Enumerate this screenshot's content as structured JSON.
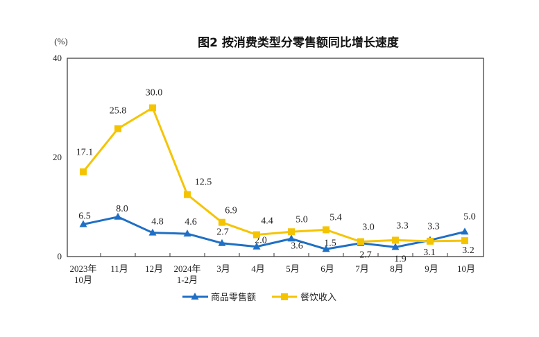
{
  "chart_data": {
    "type": "line",
    "title": "图2  按消费类型分零售额同比增长速度",
    "ylabel": "(%)",
    "ylim": [
      0,
      40
    ],
    "yticks": [
      "0",
      "20",
      "40"
    ],
    "categories": [
      [
        "2023年",
        "10月"
      ],
      [
        "11月"
      ],
      [
        "12月"
      ],
      [
        "2024年",
        "1-2月"
      ],
      [
        "3月"
      ],
      [
        "4月"
      ],
      [
        "5月"
      ],
      [
        "6月"
      ],
      [
        "7月"
      ],
      [
        "8月"
      ],
      [
        "9月"
      ],
      [
        "10月"
      ]
    ],
    "grid": false,
    "legend_position": "bottom",
    "series": [
      {
        "name": "商品零售额",
        "color": "#1f6fc5",
        "marker": "triangle",
        "values": [
          6.5,
          8.0,
          4.8,
          4.6,
          2.7,
          2.0,
          3.6,
          1.5,
          2.7,
          1.9,
          3.3,
          5.0
        ],
        "labels": [
          "6.5",
          "8.0",
          "4.8",
          "4.6",
          "2.7",
          "2.0",
          "3.6",
          "1.5",
          "2.7",
          "1.9",
          "3.3",
          "5.0"
        ]
      },
      {
        "name": "餐饮收入",
        "color": "#f5c400",
        "marker": "square",
        "values": [
          17.1,
          25.8,
          30.0,
          12.5,
          6.9,
          4.4,
          5.0,
          5.4,
          3.0,
          3.3,
          3.1,
          3.2
        ],
        "labels": [
          "17.1",
          "25.8",
          "30.0",
          "12.5",
          "6.9",
          "4.4",
          "5.0",
          "5.4",
          "3.0",
          "3.3",
          "3.1",
          "3.2"
        ]
      }
    ]
  }
}
